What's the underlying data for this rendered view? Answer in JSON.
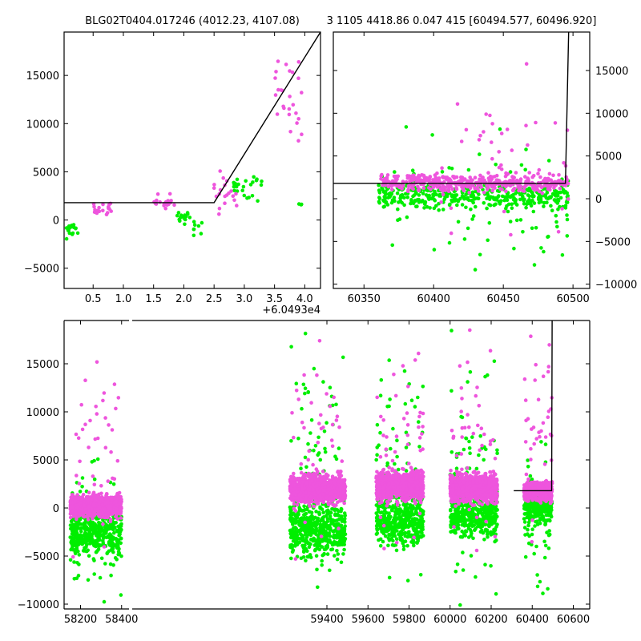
{
  "titles": {
    "left": "BLG02T0404.017246 (4012.23, 4107.08)",
    "right": "3 1105 4418.86 0.047 415 [60494.577, 60496.920]"
  },
  "colors": {
    "series_a": "#00ee00",
    "series_b": "#ee55dd",
    "model": "#000000"
  },
  "chart_data": [
    {
      "type": "scatter",
      "panel": "top-left",
      "xlim": [
        0.02,
        4.26
      ],
      "ylim": [
        -7100,
        19500
      ],
      "x_offset_label": "+6.0493e4",
      "x_ticks": [
        0.5,
        1.0,
        1.5,
        2.0,
        2.5,
        3.0,
        3.5,
        4.0
      ],
      "x_tick_labels": [
        "0.5",
        "1.0",
        "1.5",
        "2.0",
        "2.5",
        "3.0",
        "3.5",
        "4.0"
      ],
      "y_ticks": [
        -5000,
        0,
        5000,
        10000,
        15000
      ],
      "y_tick_labels": [
        "−5000",
        "0",
        "5000",
        "10000",
        "15000"
      ],
      "y_tick_side": "left",
      "series": [
        {
          "color": "#00ee00",
          "clusters": [
            {
              "x": [
                0.05,
                0.25
              ],
              "y": [
                -2500,
                500
              ],
              "n": 18
            },
            {
              "x": [
                1.88,
                2.1
              ],
              "y": [
                -500,
                1300
              ],
              "n": 16
            },
            {
              "x": [
                2.1,
                2.3
              ],
              "y": [
                -2000,
                200
              ],
              "n": 8
            },
            {
              "x": [
                2.8,
                3.3
              ],
              "y": [
                1300,
                5700
              ],
              "n": 24
            },
            {
              "x": [
                3.9,
                3.95
              ],
              "y": [
                1300,
                1900
              ],
              "n": 3
            }
          ]
        },
        {
          "color": "#ee55dd",
          "clusters": [
            {
              "x": [
                0.5,
                0.85
              ],
              "y": [
                400,
                2000
              ],
              "n": 18
            },
            {
              "x": [
                1.5,
                1.85
              ],
              "y": [
                900,
                2800
              ],
              "n": 22
            },
            {
              "x": [
                2.5,
                2.95
              ],
              "y": [
                400,
                5400
              ],
              "n": 20
            },
            {
              "x": [
                3.5,
                3.95
              ],
              "y": [
                6400,
                19000
              ],
              "n": 26
            }
          ]
        }
      ],
      "model_line": {
        "x": [
          0.02,
          2.5,
          4.26
        ],
        "y": [
          1800,
          1800,
          19500
        ]
      }
    },
    {
      "type": "scatter",
      "panel": "top-right",
      "xlim": [
        60328,
        60512
      ],
      "ylim": [
        -10500,
        19500
      ],
      "x_ticks": [
        60350,
        60400,
        60450,
        60500
      ],
      "x_tick_labels": [
        "60350",
        "60400",
        "60450",
        "60500"
      ],
      "y_ticks": [
        -10000,
        -5000,
        0,
        5000,
        10000,
        15000
      ],
      "y_tick_labels": [
        "−10000",
        "−5000",
        "0",
        "5000",
        "10000",
        "15000"
      ],
      "y_tick_side": "right",
      "series": [
        {
          "color": "#00ee00",
          "clusters": [
            {
              "x": [
                60360,
                60497
              ],
              "y": [
                -1500,
                2200
              ],
              "n": 380
            },
            {
              "x": [
                60360,
                60497
              ],
              "y": [
                -9800,
                9000
              ],
              "n": 90
            }
          ]
        },
        {
          "color": "#ee55dd",
          "clusters": [
            {
              "x": [
                60362,
                60497
              ],
              "y": [
                500,
                3200
              ],
              "n": 420
            },
            {
              "x": [
                60400,
                60497
              ],
              "y": [
                -9000,
                19000
              ],
              "n": 45
            }
          ]
        }
      ],
      "model_line": {
        "x": [
          60328,
          60494.6,
          60496.9
        ],
        "y": [
          1800,
          1800,
          19500
        ]
      }
    },
    {
      "type": "scatter",
      "panel": "bottom",
      "xlim": [
        58120,
        60680
      ],
      "ylim": [
        -10500,
        19500
      ],
      "broken_axis_break_x": 58440,
      "x_ticks": [
        58200,
        58400,
        59400,
        59600,
        59800,
        60000,
        60200,
        60400,
        60600
      ],
      "x_tick_labels": [
        "58200",
        "58400",
        "59400",
        "59600",
        "59800",
        "60000",
        "60200",
        "60400",
        "60600"
      ],
      "y_ticks": [
        -10000,
        -5000,
        0,
        5000,
        10000,
        15000
      ],
      "y_tick_labels": [
        "−10000",
        "−5000",
        "0",
        "5000",
        "10000",
        "15000"
      ],
      "y_tick_side": "left",
      "series": [
        {
          "color": "#00ee00",
          "clusters": [
            {
              "x": [
                58150,
                58400
              ],
              "y": [
                -6000,
                1500
              ],
              "n": 420
            },
            {
              "x": [
                58150,
                58400
              ],
              "y": [
                -10400,
                6000
              ],
              "n": 90
            },
            {
              "x": [
                59220,
                59490
              ],
              "y": [
                -6000,
                1500
              ],
              "n": 480
            },
            {
              "x": [
                59220,
                59490
              ],
              "y": [
                -10400,
                18500
              ],
              "n": 90
            },
            {
              "x": [
                59640,
                59870
              ],
              "y": [
                -4500,
                2000
              ],
              "n": 420
            },
            {
              "x": [
                59640,
                59870
              ],
              "y": [
                -10400,
                18500
              ],
              "n": 80
            },
            {
              "x": [
                60000,
                60230
              ],
              "y": [
                -3500,
                2000
              ],
              "n": 380
            },
            {
              "x": [
                60000,
                60230
              ],
              "y": [
                -10400,
                18500
              ],
              "n": 80
            },
            {
              "x": [
                60360,
                60497
              ],
              "y": [
                -2000,
                1800
              ],
              "n": 220
            },
            {
              "x": [
                60360,
                60497
              ],
              "y": [
                -10000,
                9000
              ],
              "n": 60
            }
          ]
        },
        {
          "color": "#ee55dd",
          "clusters": [
            {
              "x": [
                58150,
                58400
              ],
              "y": [
                -1200,
                1600
              ],
              "n": 900
            },
            {
              "x": [
                58150,
                58400
              ],
              "y": [
                -9000,
                17000
              ],
              "n": 40
            },
            {
              "x": [
                59220,
                59490
              ],
              "y": [
                200,
                3800
              ],
              "n": 1000
            },
            {
              "x": [
                59220,
                59490
              ],
              "y": [
                -8000,
                18500
              ],
              "n": 50
            },
            {
              "x": [
                59640,
                59870
              ],
              "y": [
                500,
                4200
              ],
              "n": 900
            },
            {
              "x": [
                59640,
                59870
              ],
              "y": [
                -7000,
                18500
              ],
              "n": 50
            },
            {
              "x": [
                60000,
                60230
              ],
              "y": [
                200,
                3800
              ],
              "n": 900
            },
            {
              "x": [
                60000,
                60230
              ],
              "y": [
                -9000,
                18500
              ],
              "n": 50
            },
            {
              "x": [
                60360,
                60497
              ],
              "y": [
                500,
                3000
              ],
              "n": 450
            },
            {
              "x": [
                60360,
                60497
              ],
              "y": [
                -6000,
                19000
              ],
              "n": 40
            }
          ]
        }
      ],
      "model_line": {
        "x": [
          60310,
          60494.6,
          60496.9
        ],
        "y": [
          1800,
          1800,
          19500
        ]
      }
    }
  ]
}
